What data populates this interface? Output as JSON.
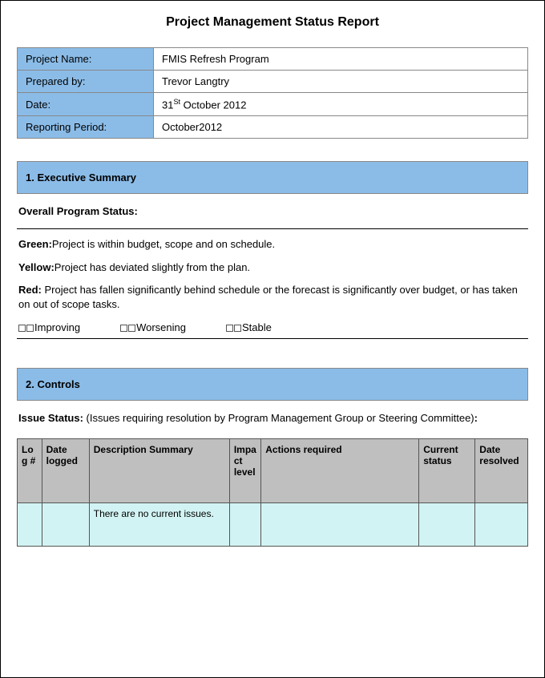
{
  "title": "Project Management Status Report",
  "colors": {
    "header_blue": "#8bbce8",
    "table_header_gray": "#bfbfbf",
    "table_row_cyan": "#d2f3f3",
    "border": "#555"
  },
  "info": {
    "rows": [
      {
        "label": "Project Name:",
        "value": "FMIS Refresh Program"
      },
      {
        "label": "Prepared by:",
        "value": "Trevor Langtry"
      },
      {
        "label": "Date:",
        "value_html": "31<sup>St</sup> October  2012"
      },
      {
        "label": "Reporting Period:",
        "value": "October2012"
      }
    ]
  },
  "section1": {
    "header": "1.  Executive Summary",
    "subheading": "Overall Program Status:",
    "statuses": [
      {
        "label": "Green:",
        "text": "Project is within budget, scope and on schedule."
      },
      {
        "label": "Yellow:",
        "text": "Project has deviated slightly from the plan."
      },
      {
        "label": "Red:",
        "text": " Project has fallen significantly behind schedule or the forecast is significantly over budget, or has taken on out of scope tasks."
      }
    ],
    "trends": [
      "Improving",
      "Worsening",
      "Stable"
    ]
  },
  "section2": {
    "header": "2.  Controls",
    "issue_label": "Issue Status:",
    "issue_text": " (Issues requiring resolution by Program Management Group or Steering Committee)",
    "columns": [
      {
        "label": "Log #",
        "width": 28
      },
      {
        "label": "Date logged",
        "width": 54
      },
      {
        "label": "Description Summary",
        "width": 160
      },
      {
        "label": "Impact level",
        "width": 36
      },
      {
        "label": "Actions required",
        "width": 180
      },
      {
        "label": "Current status",
        "width": 64
      },
      {
        "label": "Date resolved",
        "width": 60
      }
    ],
    "rows": [
      {
        "log": "",
        "date_logged": "",
        "description": "There are no current issues.",
        "impact": "",
        "actions": "",
        "status": "",
        "date_resolved": ""
      }
    ]
  }
}
